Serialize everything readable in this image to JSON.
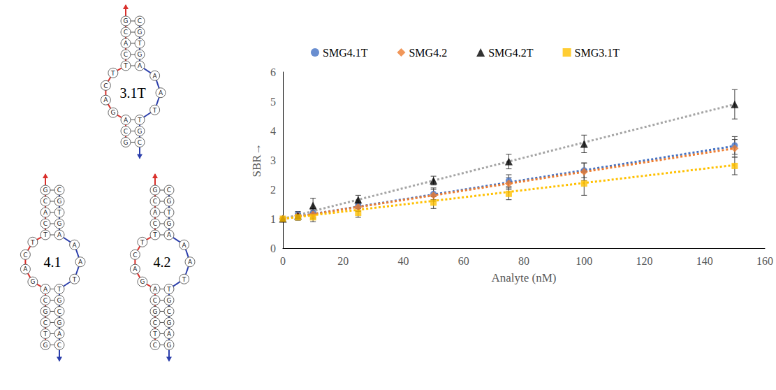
{
  "chart_data": {
    "type": "scatter",
    "x": [
      0,
      5,
      10,
      25,
      50,
      75,
      100,
      150
    ],
    "xlabel": "Analyte (nM)",
    "ylabel": "SBR→",
    "xlim": [
      0,
      160
    ],
    "xticks": [
      0,
      20,
      40,
      60,
      80,
      100,
      120,
      140,
      160
    ],
    "ylim": [
      0,
      6
    ],
    "yticks": [
      0,
      1,
      2,
      3,
      4,
      5,
      6
    ],
    "grid": false,
    "legend": "top",
    "series": [
      {
        "name": "SMG4.1T",
        "color": "#4472c4",
        "marker": "circle",
        "values": [
          1.0,
          1.15,
          1.2,
          1.45,
          1.85,
          2.3,
          2.65,
          3.5
        ],
        "errors": [
          0.05,
          0.1,
          0.15,
          0.15,
          0.2,
          0.2,
          0.25,
          0.3
        ],
        "trendline": {
          "x": [
            0,
            150
          ],
          "values": [
            1.0,
            3.48
          ],
          "color": "#4472c4",
          "line_style": "dotted"
        }
      },
      {
        "name": "SMG4.2",
        "color": "#ed7d31",
        "marker": "diamond",
        "values": [
          1.0,
          1.1,
          1.15,
          1.4,
          1.8,
          2.2,
          2.6,
          3.4
        ],
        "errors": [
          0.05,
          0.1,
          0.15,
          0.15,
          0.2,
          0.2,
          0.3,
          0.3
        ],
        "trendline": {
          "x": [
            0,
            150
          ],
          "values": [
            1.0,
            3.4
          ],
          "color": "#ed7d31",
          "line_style": "dotted"
        }
      },
      {
        "name": "SMG4.2T",
        "color": "#000000",
        "marker": "triangle",
        "values": [
          1.0,
          1.1,
          1.45,
          1.65,
          2.3,
          2.95,
          3.55,
          4.9
        ],
        "errors": [
          0.05,
          0.1,
          0.25,
          0.15,
          0.15,
          0.25,
          0.3,
          0.5
        ],
        "trendline": {
          "x": [
            0,
            150
          ],
          "values": [
            1.0,
            4.9
          ],
          "color": "#a5a5a5",
          "line_style": "dotted"
        }
      },
      {
        "name": "SMG3.1T",
        "color": "#ffc000",
        "marker": "square",
        "values": [
          1.0,
          1.05,
          1.05,
          1.2,
          1.55,
          1.85,
          2.2,
          2.8
        ],
        "errors": [
          0.05,
          0.1,
          0.15,
          0.15,
          0.2,
          0.2,
          0.4,
          0.3
        ],
        "trendline": {
          "x": [
            0,
            150
          ],
          "values": [
            1.0,
            2.83
          ],
          "color": "#ffc000",
          "line_style": "dotted"
        }
      }
    ]
  },
  "diagrams": [
    {
      "label": "3.1T",
      "upper_stem": {
        "left": [
          "G",
          "C",
          "A",
          "C",
          "T"
        ],
        "right": [
          "C",
          "G",
          "T",
          "G",
          "A"
        ]
      },
      "left_loop": [
        "T",
        "C",
        "A",
        "G"
      ],
      "right_loop": [
        "A",
        "A",
        "T"
      ],
      "lower_stem": {
        "left": [
          "A",
          "C",
          "G"
        ],
        "right": [
          "T",
          "G",
          "C"
        ]
      }
    },
    {
      "label": "4.1",
      "upper_stem": {
        "left": [
          "G",
          "C",
          "A",
          "C",
          "T"
        ],
        "right": [
          "C",
          "G",
          "T",
          "G",
          "A"
        ]
      },
      "left_loop": [
        "T",
        "C",
        "A",
        "G"
      ],
      "right_loop": [
        "A",
        "A",
        "T"
      ],
      "lower_stem": {
        "left": [
          "A",
          "C",
          "G",
          "C",
          "T",
          "G"
        ],
        "right": [
          "T",
          "G",
          "C",
          "G",
          "A",
          "C"
        ]
      }
    },
    {
      "label": "4.2",
      "upper_stem": {
        "left": [
          "G",
          "C",
          "A",
          "C",
          "T"
        ],
        "right": [
          "C",
          "G",
          "T",
          "G",
          "A"
        ]
      },
      "left_loop": [
        "T",
        "C",
        "A",
        "G"
      ],
      "right_loop": [
        "A",
        "A",
        "T"
      ],
      "lower_stem": {
        "left": [
          "A",
          "C",
          "G",
          "C",
          "T",
          "C"
        ],
        "right": [
          "T",
          "G",
          "C",
          "G",
          "A",
          "G"
        ]
      }
    }
  ]
}
